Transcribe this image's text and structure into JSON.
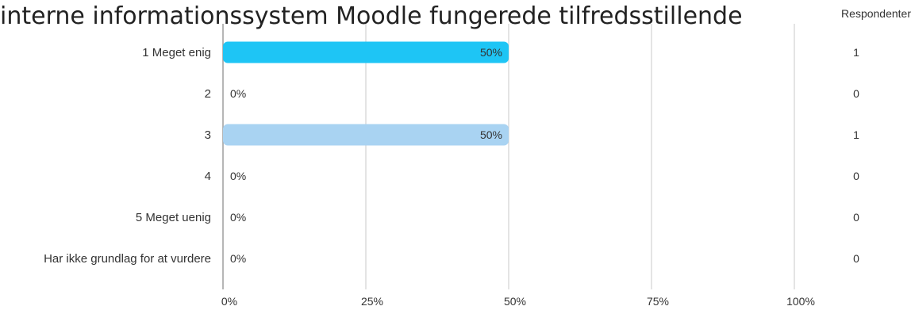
{
  "chart_data": {
    "type": "bar",
    "orientation": "horizontal",
    "title": "interne informationssystem Moodle fungerede tilfredsstillende",
    "categories": [
      "1 Meget enig",
      "2",
      "3",
      "4",
      "5 Meget uenig",
      "Har ikke grundlag for at vurdere"
    ],
    "values": [
      50,
      0,
      50,
      0,
      0,
      0
    ],
    "value_labels": [
      "50%",
      "0%",
      "50%",
      "0%",
      "0%",
      "0%"
    ],
    "respondents_header": "Respondenter",
    "respondents": [
      "1",
      "0",
      "1",
      "0",
      "0",
      "0"
    ],
    "bar_colors": [
      "#1ec5f5",
      "#a9d3f2",
      "#a9d3f2",
      "#a9d3f2",
      "#a9d3f2",
      "#a9d3f2"
    ],
    "xlim": [
      0,
      100
    ],
    "xticks": [
      0,
      25,
      50,
      75,
      100
    ],
    "xtick_labels": [
      "0%",
      "25%",
      "50%",
      "75%",
      "100%"
    ],
    "grid": true
  }
}
